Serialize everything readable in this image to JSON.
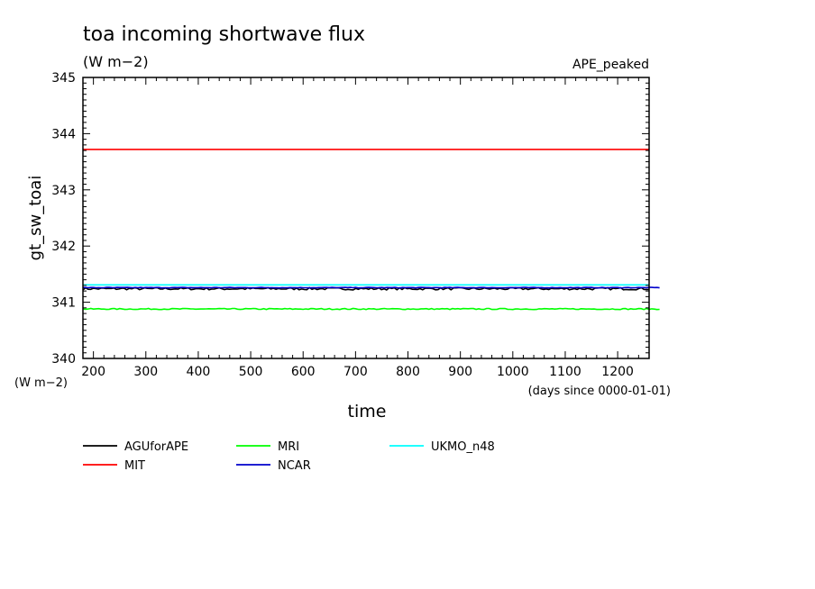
{
  "chart_data": {
    "type": "line",
    "title": "toa incoming shortwave flux",
    "units": "(W m−2)",
    "tag": "APE_peaked",
    "xlabel": "time",
    "x_units": "(days since 0000-01-01)",
    "ylabel": "gt_sw_toai",
    "y_units": "(W m−2)",
    "xlim": [
      180,
      1260
    ],
    "ylim": [
      340,
      345
    ],
    "x_ticks": [
      200,
      300,
      400,
      500,
      600,
      700,
      800,
      900,
      1000,
      1100,
      1200
    ],
    "y_ticks": [
      340,
      341,
      342,
      343,
      344,
      345
    ],
    "grid": false,
    "legend_position": "below",
    "series": [
      {
        "name": "AGUforAPE",
        "color": "#000000",
        "x": [
          180,
          1260
        ],
        "y": [
          341.24,
          341.24
        ],
        "noise": 0.02
      },
      {
        "name": "MIT",
        "color": "#ff0000",
        "x": [
          180,
          1260
        ],
        "y": [
          343.72,
          343.72
        ],
        "noise": 0
      },
      {
        "name": "MRI",
        "color": "#00ff00",
        "x": [
          180,
          1280
        ],
        "y": [
          340.88,
          340.88
        ],
        "noise": 0.01
      },
      {
        "name": "NCAR",
        "color": "#0000cc",
        "x": [
          180,
          1280
        ],
        "y": [
          341.26,
          341.26
        ],
        "noise": 0.005
      },
      {
        "name": "UKMO_n48",
        "color": "#00ffff",
        "x": [
          180,
          1260
        ],
        "y": [
          341.31,
          341.31
        ],
        "noise": 0
      }
    ]
  }
}
